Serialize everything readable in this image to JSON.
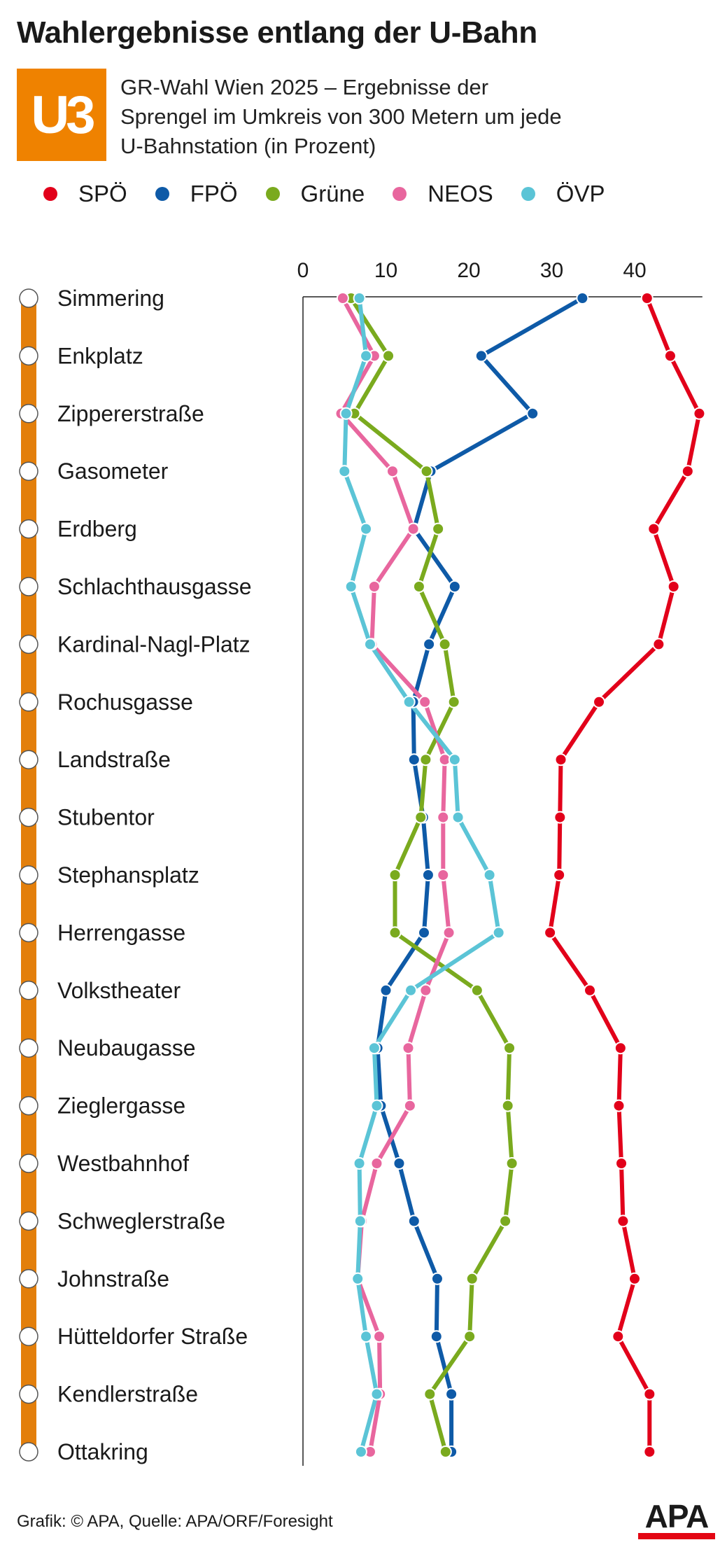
{
  "title": "Wahlergebnisse entlang der U-Bahn",
  "badge": "U3",
  "subtitle": "GR-Wahl Wien 2025 – Ergebnisse der Sprengel im Umkreis von 300 Metern um jede U-Bahnstation (in Prozent)",
  "footer": "Grafik: © APA, Quelle: APA/ORF/Foresight",
  "logo_text": "APA",
  "colors": {
    "line": "#e37f0b",
    "axis": "#222222",
    "logo_red": "#e30613"
  },
  "chart_data": {
    "type": "line",
    "orientation": "vertical-stations",
    "x_ticks": [
      0,
      10,
      20,
      30,
      40
    ],
    "xlim": [
      0,
      48
    ],
    "categories": [
      "Simmering",
      "Enkplatz",
      "Zippererstraße",
      "Gasometer",
      "Erdberg",
      "Schlachthausgasse",
      "Kardinal-Nagl-Platz",
      "Rochusgasse",
      "Landstraße",
      "Stubentor",
      "Stephansplatz",
      "Herrengasse",
      "Volkstheater",
      "Neubaugasse",
      "Zieglergasse",
      "Westbahnhof",
      "Schweglerstraße",
      "Johnstraße",
      "Hütteldorfer Straße",
      "Kendlerstraße",
      "Ottakring"
    ],
    "series": [
      {
        "name": "SPÖ",
        "color": "#e2001a",
        "values": [
          41.5,
          44.3,
          47.8,
          46.4,
          42.3,
          44.7,
          42.9,
          35.7,
          31.1,
          31.0,
          30.9,
          29.8,
          34.6,
          38.3,
          38.1,
          38.4,
          38.6,
          40.0,
          38.0,
          41.8,
          41.8
        ]
      },
      {
        "name": "FPÖ",
        "color": "#0e5aa7",
        "values": [
          33.7,
          21.5,
          27.7,
          15.4,
          13.4,
          18.3,
          15.2,
          13.3,
          13.4,
          14.5,
          15.1,
          14.6,
          10.0,
          9.0,
          9.4,
          11.6,
          13.4,
          16.2,
          16.1,
          17.9,
          17.9
        ]
      },
      {
        "name": "Grüne",
        "color": "#7aaa1e",
        "values": [
          5.8,
          10.3,
          6.2,
          14.9,
          16.3,
          14.0,
          17.1,
          18.2,
          14.8,
          14.2,
          11.1,
          11.1,
          21.0,
          24.9,
          24.7,
          25.2,
          24.4,
          20.4,
          20.1,
          15.3,
          17.2
        ]
      },
      {
        "name": "NEOS",
        "color": "#e8669e",
        "values": [
          4.8,
          8.6,
          4.6,
          10.8,
          13.3,
          8.6,
          8.3,
          14.7,
          17.1,
          16.9,
          16.9,
          17.6,
          14.8,
          12.7,
          12.9,
          8.9,
          7.1,
          6.6,
          9.2,
          9.3,
          8.1
        ]
      },
      {
        "name": "ÖVP",
        "color": "#5bc4d6",
        "values": [
          6.8,
          7.6,
          5.2,
          5.0,
          7.6,
          5.8,
          8.1,
          12.8,
          18.3,
          18.7,
          22.5,
          23.6,
          13.0,
          8.6,
          8.9,
          6.8,
          6.9,
          6.6,
          7.6,
          8.9,
          7.0
        ]
      }
    ]
  }
}
